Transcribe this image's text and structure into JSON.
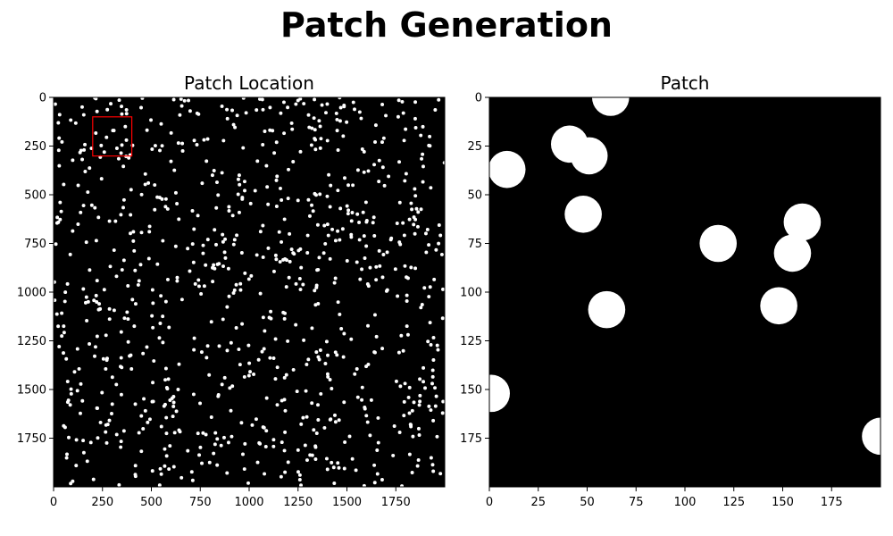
{
  "figure": {
    "title": "Patch Generation"
  },
  "chart_data": [
    {
      "type": "heatmap",
      "title": "Patch Location",
      "xlim": [
        0,
        2000
      ],
      "ylim": [
        2000,
        0
      ],
      "xticks": [
        0,
        250,
        500,
        750,
        1000,
        1250,
        1500,
        1750
      ],
      "yticks": [
        0,
        250,
        500,
        750,
        1000,
        1250,
        1500,
        1750
      ],
      "background": "#000000",
      "dot_color": "#ffffff",
      "dot_count": 900,
      "dot_radius": 9,
      "patch_box": {
        "x": 200,
        "y": 100,
        "width": 200,
        "height": 200,
        "color": "#ff0000"
      }
    },
    {
      "type": "heatmap",
      "title": "Patch",
      "xlim": [
        0,
        200
      ],
      "ylim": [
        200,
        0
      ],
      "xticks": [
        0,
        25,
        50,
        75,
        100,
        125,
        150,
        175
      ],
      "yticks": [
        0,
        25,
        50,
        75,
        100,
        125,
        150,
        175
      ],
      "background": "#000000",
      "dot_color": "#ffffff",
      "dot_radius": 9.5,
      "dots": [
        {
          "x": 62,
          "y": 0
        },
        {
          "x": 9,
          "y": 37
        },
        {
          "x": 41,
          "y": 24
        },
        {
          "x": 51,
          "y": 30
        },
        {
          "x": 48,
          "y": 60
        },
        {
          "x": 60,
          "y": 109
        },
        {
          "x": 117,
          "y": 75
        },
        {
          "x": 160,
          "y": 64
        },
        {
          "x": 155,
          "y": 80
        },
        {
          "x": 148,
          "y": 107
        },
        {
          "x": 1,
          "y": 152
        },
        {
          "x": 200,
          "y": 174
        }
      ]
    }
  ]
}
